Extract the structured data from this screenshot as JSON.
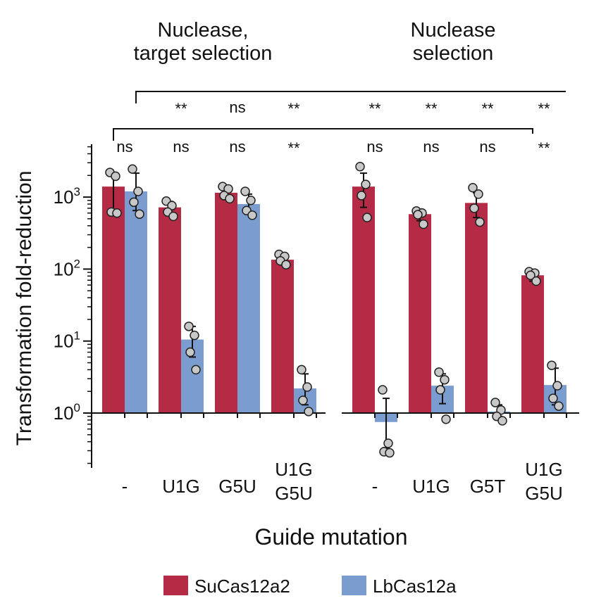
{
  "chart_data": {
    "type": "bar",
    "scale": "log",
    "ylabel": "Transformation fold-reduction",
    "xlabel": "Guide mutation",
    "ylim": [
      0.2,
      5000
    ],
    "y_ticks": [
      {
        "value": 1,
        "base": "10",
        "exp": "0"
      },
      {
        "value": 10,
        "base": "10",
        "exp": "1"
      },
      {
        "value": 100,
        "base": "10",
        "exp": "2"
      },
      {
        "value": 1000,
        "base": "10",
        "exp": "3"
      }
    ],
    "legend": [
      {
        "name": "SuCas12a2",
        "color": "#b52b45"
      },
      {
        "name": "LbCas12a",
        "color": "#7a9ccf"
      }
    ],
    "colors": {
      "SuCas12a2": "#b52b45",
      "LbCas12a": "#7a9ccf",
      "point": "#c8c8c8"
    },
    "panels": [
      {
        "title": [
          "Nuclease,",
          "target selection"
        ],
        "groups": [
          {
            "label": [
              "-"
            ],
            "bars": [
              {
                "series": "SuCas12a2",
                "value": 1400,
                "err": [
                  600,
                  2150
                ],
                "points": [
                  2200,
                  1950,
                  620,
                  600
                ]
              },
              {
                "series": "LbCas12a",
                "value": 1200,
                "err": [
                  650,
                  2150
                ],
                "points": [
                  2450,
                  1200,
                  850,
                  580
                ]
              }
            ]
          },
          {
            "label": [
              "U1G"
            ],
            "bars": [
              {
                "series": "SuCas12a2",
                "value": 720,
                "err": [
                  580,
                  870
                ],
                "points": [
                  880,
                  760,
                  620,
                  540
                ]
              },
              {
                "series": "LbCas12a",
                "value": 10.5,
                "err": [
                  6,
                  16
                ],
                "points": [
                  16,
                  12,
                  7,
                  4
                ]
              }
            ]
          },
          {
            "label": [
              "G5U"
            ],
            "bars": [
              {
                "series": "SuCas12a2",
                "value": 1150,
                "err": [
                  920,
                  1400
                ],
                "points": [
                  1400,
                  1300,
                  1050,
                  950
                ]
              },
              {
                "series": "LbCas12a",
                "value": 800,
                "err": [
                  600,
                  1100
                ],
                "points": [
                  1200,
                  900,
                  650,
                  560
                ]
              }
            ]
          },
          {
            "label": [
              "U1G",
              "G5U"
            ],
            "bars": [
              {
                "series": "SuCas12a2",
                "value": 135,
                "err": [
                  115,
                  160
                ],
                "points": [
                  160,
                  150,
                  130,
                  115
                ]
              },
              {
                "series": "LbCas12a",
                "value": 2.2,
                "err": [
                  1.3,
                  3.5
                ],
                "points": [
                  4,
                  2.3,
                  1.5,
                  1.05
                ]
              }
            ]
          }
        ]
      },
      {
        "title": [
          "Nuclease",
          "selection"
        ],
        "groups": [
          {
            "label": [
              "-"
            ],
            "bars": [
              {
                "series": "SuCas12a2",
                "value": 1400,
                "err": [
                  720,
                  2150
                ],
                "points": [
                  2650,
                  1500,
                  1050,
                  520
                ]
              },
              {
                "series": "LbCas12a",
                "value": 0.75,
                "err": [
                  0.33,
                  1.6
                ],
                "points": [
                  2.1,
                  0.38,
                  0.29,
                  0.28
                ]
              }
            ]
          },
          {
            "label": [
              "U1G"
            ],
            "bars": [
              {
                "series": "SuCas12a2",
                "value": 580,
                "err": [
                  470,
                  640
                ],
                "points": [
                  640,
                  600,
                  570,
                  420
                ]
              },
              {
                "series": "LbCas12a",
                "value": 2.4,
                "err": [
                  1.35,
                  3.5
                ],
                "points": [
                  3.7,
                  2.9,
                  2.1,
                  0.82
                ]
              }
            ]
          },
          {
            "label": [
              "G5T"
            ],
            "bars": [
              {
                "series": "SuCas12a2",
                "value": 830,
                "err": [
                  520,
                  1150
                ],
                "points": [
                  1350,
                  1100,
                  700,
                  450
                ]
              },
              {
                "series": "LbCas12a",
                "value": 1.05,
                "err": [
                  0.9,
                  1.3
                ],
                "points": [
                  1.4,
                  1.1,
                  0.9,
                  0.78
                ]
              }
            ]
          },
          {
            "label": [
              "U1G",
              "G5U"
            ],
            "bars": [
              {
                "series": "SuCas12a2",
                "value": 82,
                "err": [
                  68,
                  98
                ],
                "points": [
                  92,
                  88,
                  82,
                  68
                ]
              },
              {
                "series": "LbCas12a",
                "value": 2.45,
                "err": [
                  1.3,
                  4.2
                ],
                "points": [
                  4.6,
                  2.4,
                  1.6,
                  1.25
                ]
              }
            ]
          }
        ]
      }
    ],
    "comparisons": {
      "between_series": [
        "ns",
        "ns",
        "ns",
        "**",
        "ns",
        "ns",
        "ns",
        "**"
      ],
      "vs_first_su": [
        "**",
        "ns",
        "**",
        "**",
        "**",
        "**",
        "**"
      ]
    }
  }
}
